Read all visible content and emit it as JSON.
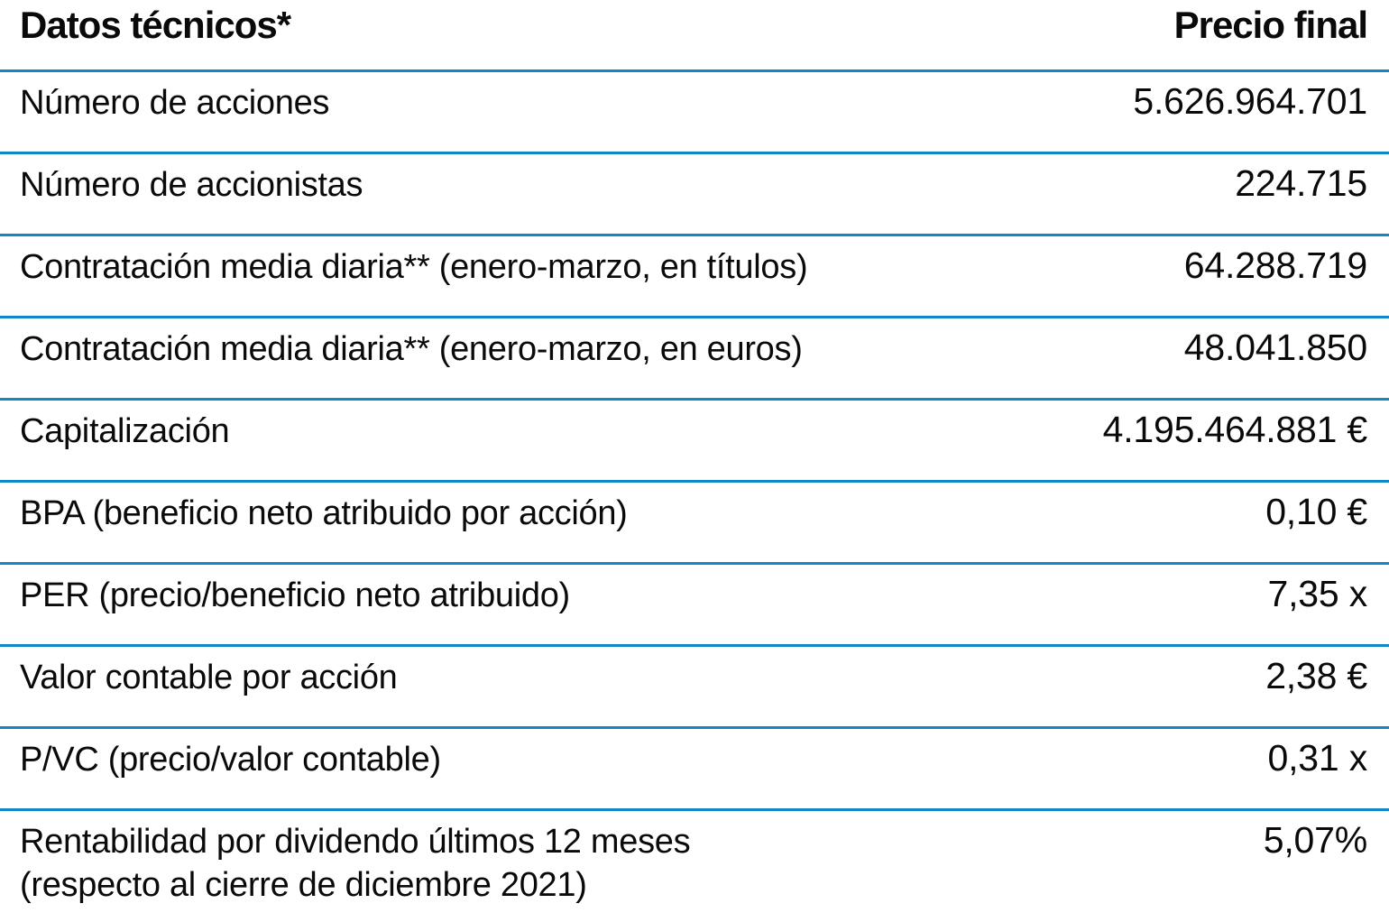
{
  "styles": {
    "divider_color": "#1287c6",
    "text_color": "#0a0a0a"
  },
  "chart_data": {
    "type": "table",
    "title": "Datos técnicos*",
    "columns": [
      "Datos técnicos*",
      "Precio final"
    ],
    "header": {
      "title": "Datos técnicos*",
      "value_label": "Precio final"
    },
    "rows": [
      {
        "label": "Número de acciones",
        "value": "5.626.964.701"
      },
      {
        "label": "Número de accionistas",
        "value": "224.715"
      },
      {
        "label": "Contratación media diaria** (enero-marzo, en títulos)",
        "value": "64.288.719"
      },
      {
        "label": "Contratación media diaria** (enero-marzo, en euros)",
        "value": "48.041.850"
      },
      {
        "label": "Capitalización",
        "value": "4.195.464.881 €"
      },
      {
        "label": "BPA (beneficio neto atribuido por acción)",
        "value": "0,10 €"
      },
      {
        "label": "PER (precio/beneficio neto atribuido)",
        "value": "7,35 x"
      },
      {
        "label": "Valor contable por acción",
        "value": "2,38 €"
      },
      {
        "label": "P/VC (precio/valor contable)",
        "value": "0,31 x"
      },
      {
        "label": "Rentabilidad por dividendo últimos 12 meses",
        "label_line2": "(respecto al cierre de diciembre 2021)",
        "value": "5,07%"
      }
    ]
  }
}
